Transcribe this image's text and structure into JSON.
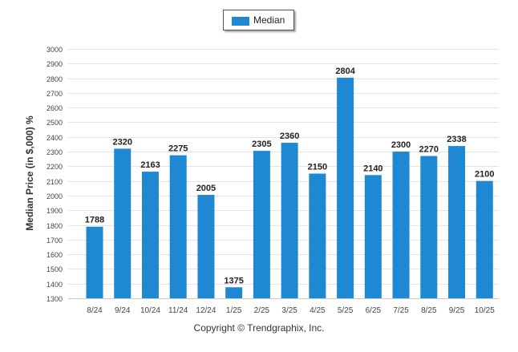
{
  "chart_data": {
    "type": "bar",
    "categories": [
      "8/24",
      "9/24",
      "10/24",
      "11/24",
      "12/24",
      "1/25",
      "2/25",
      "3/25",
      "4/25",
      "5/25",
      "6/25",
      "7/25",
      "8/25",
      "9/25",
      "10/25"
    ],
    "series": [
      {
        "name": "Median",
        "values": [
          1788,
          2320,
          2163,
          2275,
          2005,
          1375,
          2305,
          2360,
          2150,
          2804,
          2140,
          2300,
          2270,
          2338,
          2100
        ]
      }
    ],
    "ylabel": "Median Price (in $,000) %",
    "ylim": [
      1300,
      3000
    ],
    "yticks": [
      1300,
      1400,
      1500,
      1600,
      1700,
      1800,
      1900,
      2000,
      2100,
      2200,
      2300,
      2400,
      2500,
      2600,
      2700,
      2800,
      2900,
      3000
    ],
    "legend_position": "top-center",
    "grid": true,
    "bar_color": "#1f88d2"
  },
  "legend": {
    "label": "Median"
  },
  "footer": {
    "copyright": "Copyright © Trendgraphix, Inc."
  }
}
